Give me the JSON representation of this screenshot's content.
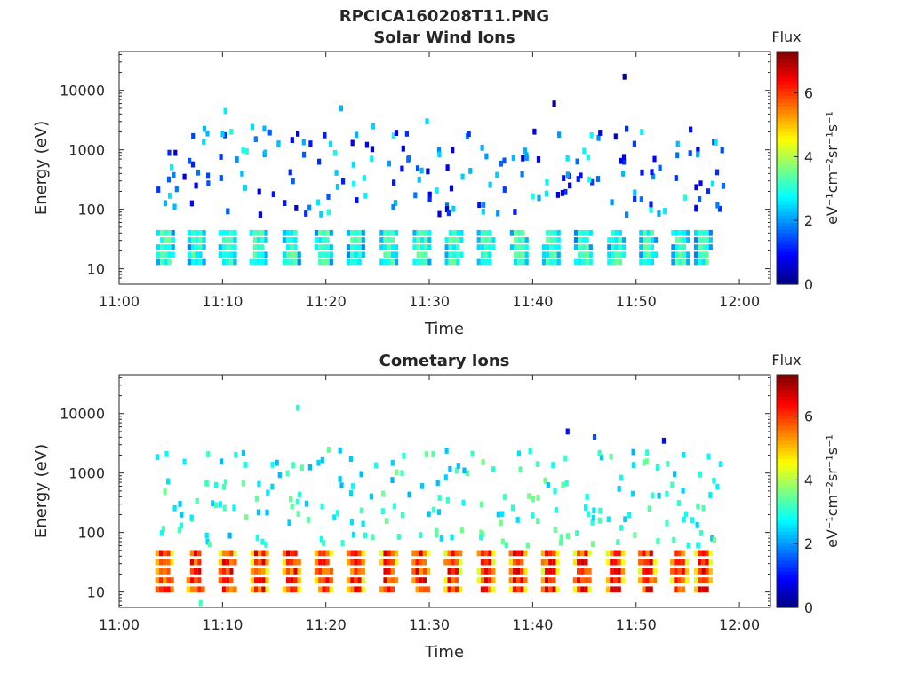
{
  "figure": {
    "title": "RPCICA160208T11.PNG"
  },
  "colorbar": {
    "label": "Flux",
    "unit_label": "eV⁻¹cm⁻²sr⁻¹s⁻¹",
    "range": [
      0,
      7.3
    ],
    "ticks": [
      "0",
      "2",
      "4",
      "6"
    ],
    "tick_values": [
      0,
      2,
      4,
      6
    ],
    "colormap": "jet",
    "colors": [
      "#00007f",
      "#0000ff",
      "#007fff",
      "#00ffff",
      "#7fff7f",
      "#ffff00",
      "#ff7f00",
      "#ff0000",
      "#7f0000"
    ]
  },
  "chart_data": [
    {
      "type": "heatmap",
      "id": "solar-wind",
      "title": "Solar Wind Ions",
      "xlabel": "Time",
      "ylabel": "Energy (eV)",
      "x_scale": "time",
      "y_scale": "log",
      "xlim": [
        "11:00",
        "12:03"
      ],
      "ylim": [
        5.5,
        45000
      ],
      "x_ticks": [
        "11:00",
        "11:10",
        "11:20",
        "11:30",
        "11:40",
        "11:50",
        "12:00"
      ],
      "y_ticks": [
        "10",
        "100",
        "1000",
        "10000"
      ],
      "y_tick_values": [
        10,
        100,
        1000,
        10000
      ],
      "grid": false,
      "sweep_start_minutes": [
        3.6,
        6.6,
        9.6,
        12.6,
        15.8,
        18.9,
        22.0,
        25.2,
        28.4,
        31.5,
        34.6,
        37.8,
        40.9,
        44.0,
        47.2,
        50.3,
        53.4,
        55.6
      ],
      "data_extent_minutes": [
        3.5,
        56.2
      ],
      "band": {
        "energy_range_eV": [
          13,
          40
        ],
        "flux_range": [
          1.8,
          3.6
        ]
      },
      "scatter": {
        "energy_range_eV": [
          80,
          2500
        ],
        "flux_range": [
          0.6,
          3.0
        ],
        "density": 0.55
      },
      "isolated_points": [
        {
          "t_min": 10.1,
          "energy_eV": 4500,
          "flux": 2.6
        },
        {
          "t_min": 21.3,
          "energy_eV": 5000,
          "flux": 2.2
        },
        {
          "t_min": 41.9,
          "energy_eV": 6000,
          "flux": 0.3
        },
        {
          "t_min": 48.7,
          "energy_eV": 17000,
          "flux": 0.2
        },
        {
          "t_min": 29.6,
          "energy_eV": 3000,
          "flux": 2.5
        }
      ]
    },
    {
      "type": "heatmap",
      "id": "cometary",
      "title": "Cometary Ions",
      "xlabel": "Time",
      "ylabel": "Energy (eV)",
      "x_scale": "time",
      "y_scale": "log",
      "xlim": [
        "11:00",
        "12:03"
      ],
      "ylim": [
        5.5,
        45000
      ],
      "x_ticks": [
        "11:00",
        "11:10",
        "11:20",
        "11:30",
        "11:40",
        "11:50",
        "12:00"
      ],
      "y_ticks": [
        "10",
        "100",
        "1000",
        "10000"
      ],
      "y_tick_values": [
        10,
        100,
        1000,
        10000
      ],
      "grid": false,
      "sweep_start_minutes": [
        3.5,
        6.5,
        9.6,
        12.7,
        15.8,
        18.9,
        22.0,
        25.2,
        28.3,
        31.4,
        34.6,
        37.7,
        40.8,
        43.9,
        47.1,
        50.2,
        53.3,
        55.6
      ],
      "data_extent_minutes": [
        3.4,
        56.7
      ],
      "band": {
        "energy_range_eV": [
          11,
          45
        ],
        "flux_range": [
          4.2,
          6.8
        ]
      },
      "scatter": {
        "energy_range_eV": [
          60,
          2500
        ],
        "flux_range": [
          2.2,
          3.6
        ],
        "density": 0.6
      },
      "isolated_points": [
        {
          "t_min": 17.1,
          "energy_eV": 12500,
          "flux": 3.0
        },
        {
          "t_min": 43.2,
          "energy_eV": 5000,
          "flux": 1.0
        },
        {
          "t_min": 45.8,
          "energy_eV": 4000,
          "flux": 1.5
        },
        {
          "t_min": 52.5,
          "energy_eV": 3500,
          "flux": 1.0
        },
        {
          "t_min": 7.7,
          "energy_eV": 6.5,
          "flux": 3.2
        }
      ]
    }
  ]
}
